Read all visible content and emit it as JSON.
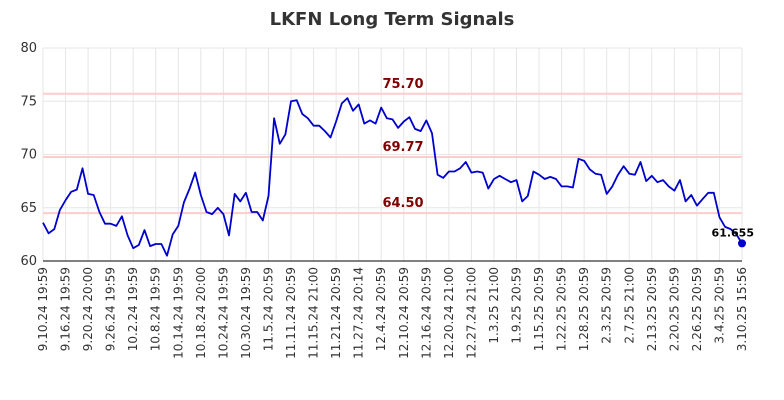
{
  "chart_data": {
    "type": "line",
    "title": "LKFN Long Term Signals",
    "xlabel": "",
    "ylabel": "",
    "ylim": [
      60,
      80
    ],
    "yticks": [
      60,
      65,
      70,
      75,
      80
    ],
    "grid": true,
    "xtick_labels": [
      "9.10.24 19:59",
      "9.16.24 19:59",
      "9.20.24 20:00",
      "9.26.24 19:59",
      "10.2.24 19:59",
      "10.8.24 19:59",
      "10.14.24 19:59",
      "10.18.24 20:00",
      "10.24.24 19:59",
      "10.30.24 19:59",
      "11.5.24 20:59",
      "11.11.24 20:59",
      "11.15.24 21:00",
      "11.21.24 20:59",
      "11.27.24 20:14",
      "12.4.24 20:59",
      "12.10.24 20:59",
      "12.16.24 20:59",
      "12.20.24 21:00",
      "12.27.24 21:00",
      "1.3.25 21:00",
      "1.9.25 20:59",
      "1.15.25 20:59",
      "1.22.25 20:59",
      "1.28.25 20:59",
      "2.3.25 20:59",
      "2.7.25 21:00",
      "2.13.25 20:59",
      "2.20.25 20:59",
      "2.26.25 20:59",
      "3.4.25 20:59",
      "3.10.25 15:56"
    ],
    "horizontal_lines": [
      {
        "label": "75.70",
        "value": 75.7
      },
      {
        "label": "69.77",
        "value": 69.77
      },
      {
        "label": "64.50",
        "value": 64.5
      }
    ],
    "series": [
      {
        "values": [
          63.6,
          62.6,
          63.0,
          64.8,
          65.7,
          66.5,
          66.7,
          68.7,
          66.3,
          66.2,
          64.6,
          63.5,
          63.5,
          63.3,
          64.2,
          62.4,
          61.2,
          61.5,
          62.9,
          61.4,
          61.6,
          61.6,
          60.5,
          62.5,
          63.3,
          65.5,
          66.8,
          68.3,
          66.2,
          64.6,
          64.4,
          65.0,
          64.4,
          62.4,
          66.3,
          65.6,
          66.4,
          64.6,
          64.6,
          63.8,
          66.1,
          73.4,
          71.0,
          71.9,
          75.0,
          75.1,
          73.8,
          73.4,
          72.7,
          72.7,
          72.2,
          71.6,
          73.1,
          74.8,
          75.3,
          74.1,
          74.7,
          72.9,
          73.2,
          72.9,
          74.4,
          73.4,
          73.3,
          72.5,
          73.1,
          73.5,
          72.4,
          72.2,
          73.2,
          72.0,
          68.1,
          67.8,
          68.4,
          68.4,
          68.7,
          69.3,
          68.3,
          68.4,
          68.3,
          66.8,
          67.7,
          68.0,
          67.7,
          67.4,
          67.6,
          65.6,
          66.1,
          68.4,
          68.1,
          67.7,
          67.9,
          67.7,
          67.0,
          67.0,
          66.9,
          69.6,
          69.4,
          68.6,
          68.2,
          68.1,
          66.3,
          67.0,
          68.1,
          68.9,
          68.2,
          68.1,
          69.3,
          67.5,
          68.0,
          67.4,
          67.6,
          67.0,
          66.6,
          67.6,
          65.6,
          66.2,
          65.2,
          65.8,
          66.4,
          66.4,
          64.1,
          63.2,
          63.0,
          62.5,
          61.655
        ],
        "last_label": "61.655"
      }
    ],
    "colors": {
      "line": "#0000cc",
      "hline": "#ffcccc",
      "hlabel": "#800000",
      "grid": "#e6e6e6",
      "axis": "#000000"
    }
  }
}
